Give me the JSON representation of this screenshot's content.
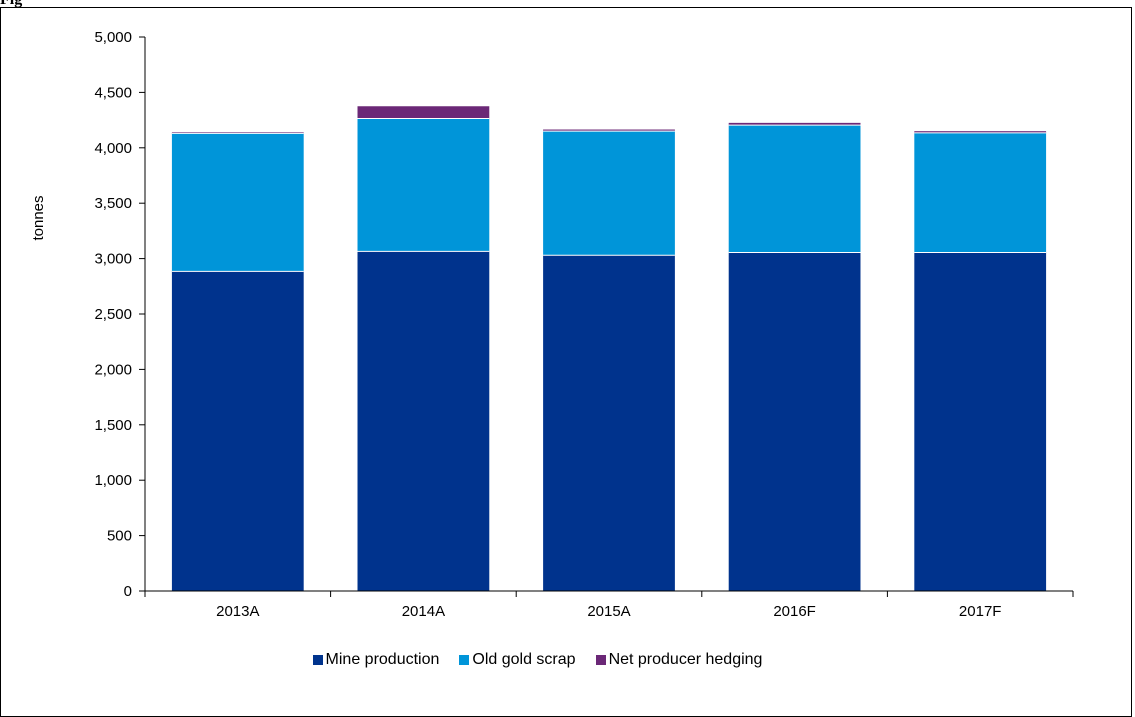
{
  "figure": {
    "title": "Fig"
  },
  "chart_data": {
    "type": "bar",
    "stacked": true,
    "categories": [
      "2013A",
      "2014A",
      "2015A",
      "2016F",
      "2017F"
    ],
    "series": [
      {
        "name": "Mine production",
        "color": "#00338d",
        "values": [
          2885,
          3065,
          3030,
          3055,
          3055
        ]
      },
      {
        "name": "Old gold scrap",
        "color": "#0095d9",
        "values": [
          1245,
          1200,
          1120,
          1150,
          1080
        ]
      },
      {
        "name": "Net producer hedging",
        "color": "#6b2877",
        "values": [
          10,
          110,
          15,
          20,
          15
        ]
      }
    ],
    "ylabel": "tonnes",
    "xlabel": "",
    "ylim": [
      0,
      5000
    ],
    "yticks": [
      0,
      500,
      1000,
      1500,
      2000,
      2500,
      3000,
      3500,
      4000,
      4500,
      5000
    ],
    "grid": false,
    "legend_position": "bottom"
  }
}
